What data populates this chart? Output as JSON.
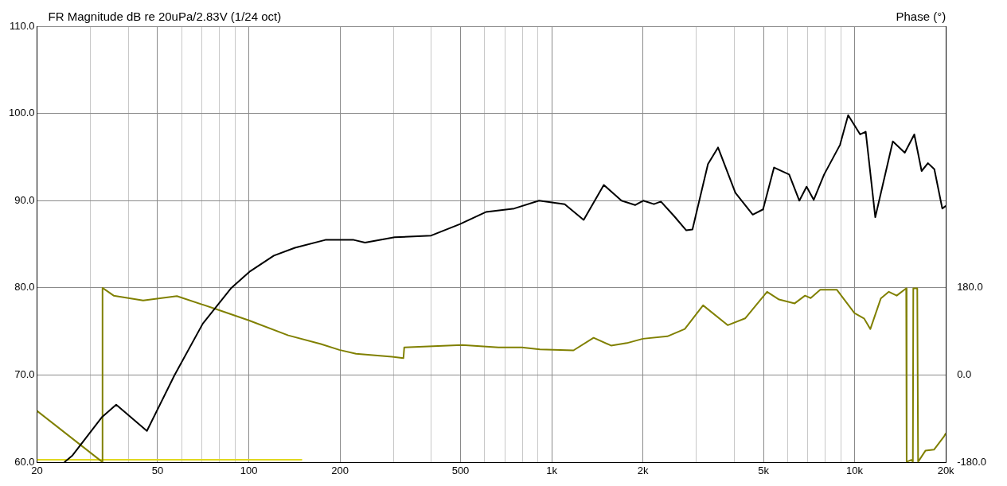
{
  "chart_data": {
    "type": "line",
    "ylabel": "FR Magnitude dB re 20uPa/2.83V (1/24 oct)",
    "y2label": "Phase (°)",
    "log": "x",
    "grid": true,
    "xlim": [
      20,
      20000
    ],
    "xticks": [
      20,
      {
        "value": 30,
        "label": null
      },
      {
        "value": 40,
        "label": null
      },
      50,
      {
        "value": 60,
        "label": null
      },
      {
        "value": 70,
        "label": null
      },
      {
        "value": 80,
        "label": null
      },
      {
        "value": 90,
        "label": null
      },
      100,
      200,
      {
        "value": 300,
        "label": null
      },
      {
        "value": 400,
        "label": null
      },
      500,
      {
        "value": 600,
        "label": null
      },
      {
        "value": 700,
        "label": null
      },
      {
        "value": 800,
        "label": null
      },
      {
        "value": 900,
        "label": null
      },
      {
        "value": 1000,
        "label": "1k"
      },
      {
        "value": 2000,
        "label": "2k"
      },
      {
        "value": 3000,
        "label": null
      },
      {
        "value": 4000,
        "label": null
      },
      {
        "value": 5000,
        "label": "5k"
      },
      {
        "value": 6000,
        "label": null
      },
      {
        "value": 7000,
        "label": null
      },
      {
        "value": 8000,
        "label": null
      },
      {
        "value": 9000,
        "label": null
      },
      {
        "value": 10000,
        "label": "10k"
      },
      {
        "value": 20000,
        "label": "20k"
      }
    ],
    "ylim": [
      60,
      110
    ],
    "yticks": [
      {
        "value": 60,
        "label": "60.0"
      },
      {
        "value": 70,
        "label": "70.0"
      },
      {
        "value": 80,
        "label": "80.0"
      },
      {
        "value": 90,
        "label": "90.0"
      },
      {
        "value": 100,
        "label": "100.0"
      },
      {
        "value": 110,
        "label": "110.0"
      }
    ],
    "y2lim": [
      -180,
      720
    ],
    "y2ticks": [
      {
        "value": -180,
        "label": "-180.0"
      },
      {
        "value": 0,
        "label": "0.0"
      },
      {
        "value": 180,
        "label": "180.0"
      }
    ],
    "series": [
      {
        "color": "#000000",
        "x": [
          24.6,
          26.2,
          32.8,
          36.5,
          46.1,
          56.9,
          70.5,
          87.6,
          101,
          121,
          142,
          179,
          222,
          242,
          303,
          400,
          497,
          606,
          752,
          908,
          1104,
          1275,
          1486,
          1700,
          1885,
          2006,
          2175,
          2293,
          2540,
          2781,
          2915,
          3280,
          3540,
          4040,
          4610,
          4985,
          5420,
          6080,
          6570,
          6940,
          7330,
          7930,
          8950,
          9520,
          10430,
          10880,
          11700,
          13370,
          14640,
          15740,
          16640,
          17460,
          18330,
          19470,
          20000
        ],
        "values": [
          60,
          60.8,
          65.2,
          66.6,
          63.6,
          70,
          75.9,
          80,
          81.9,
          83.7,
          84.6,
          85.5,
          85.5,
          85.2,
          85.8,
          86,
          87.3,
          88.7,
          89.1,
          90,
          89.6,
          87.8,
          91.8,
          90,
          89.5,
          90,
          89.6,
          89.9,
          88.2,
          86.6,
          86.7,
          94.2,
          96.1,
          90.9,
          88.4,
          89,
          93.8,
          93,
          90,
          91.6,
          90.1,
          93,
          96.4,
          99.8,
          97.6,
          97.9,
          88.1,
          96.8,
          95.5,
          97.6,
          93.4,
          94.3,
          93.6,
          89.1,
          89.4
        ]
      },
      {
        "color": "#808000",
        "axis": "y2",
        "x": [
          20,
          32.8,
          32.9,
          35.8,
          44.8,
          57.9,
          78.2,
          100,
          135,
          173,
          199,
          226,
          297,
          324,
          326,
          506,
          667,
          797,
          914,
          1180,
          1375,
          1570,
          1770,
          2000,
          2410,
          2750,
          3160,
          3810,
          4350,
          5140,
          5630,
          6340,
          6860,
          7160,
          7700,
          8740,
          9990,
          10740,
          11270,
          12200,
          12970,
          13770,
          14800,
          14850,
          15400,
          15570,
          15620,
          16100,
          16200,
          17130,
          18280,
          19760,
          20000
        ],
        "values": [
          -74,
          -179,
          180,
          164,
          154,
          163,
          136,
          113,
          82,
          64,
          52,
          44,
          38,
          35,
          57,
          62,
          57,
          57,
          53,
          51,
          77,
          61,
          66,
          75,
          80,
          95,
          144,
          103,
          117,
          172,
          156,
          148,
          164,
          159,
          176,
          176,
          128,
          117,
          95,
          158,
          172,
          164,
          179,
          -179,
          -175,
          -179,
          179,
          179,
          -179,
          -156,
          -154,
          -126,
          -120
        ]
      },
      {
        "color": "#e0d820",
        "x": [
          20,
          150
        ],
        "values": [
          60.3,
          60.3
        ]
      }
    ]
  }
}
